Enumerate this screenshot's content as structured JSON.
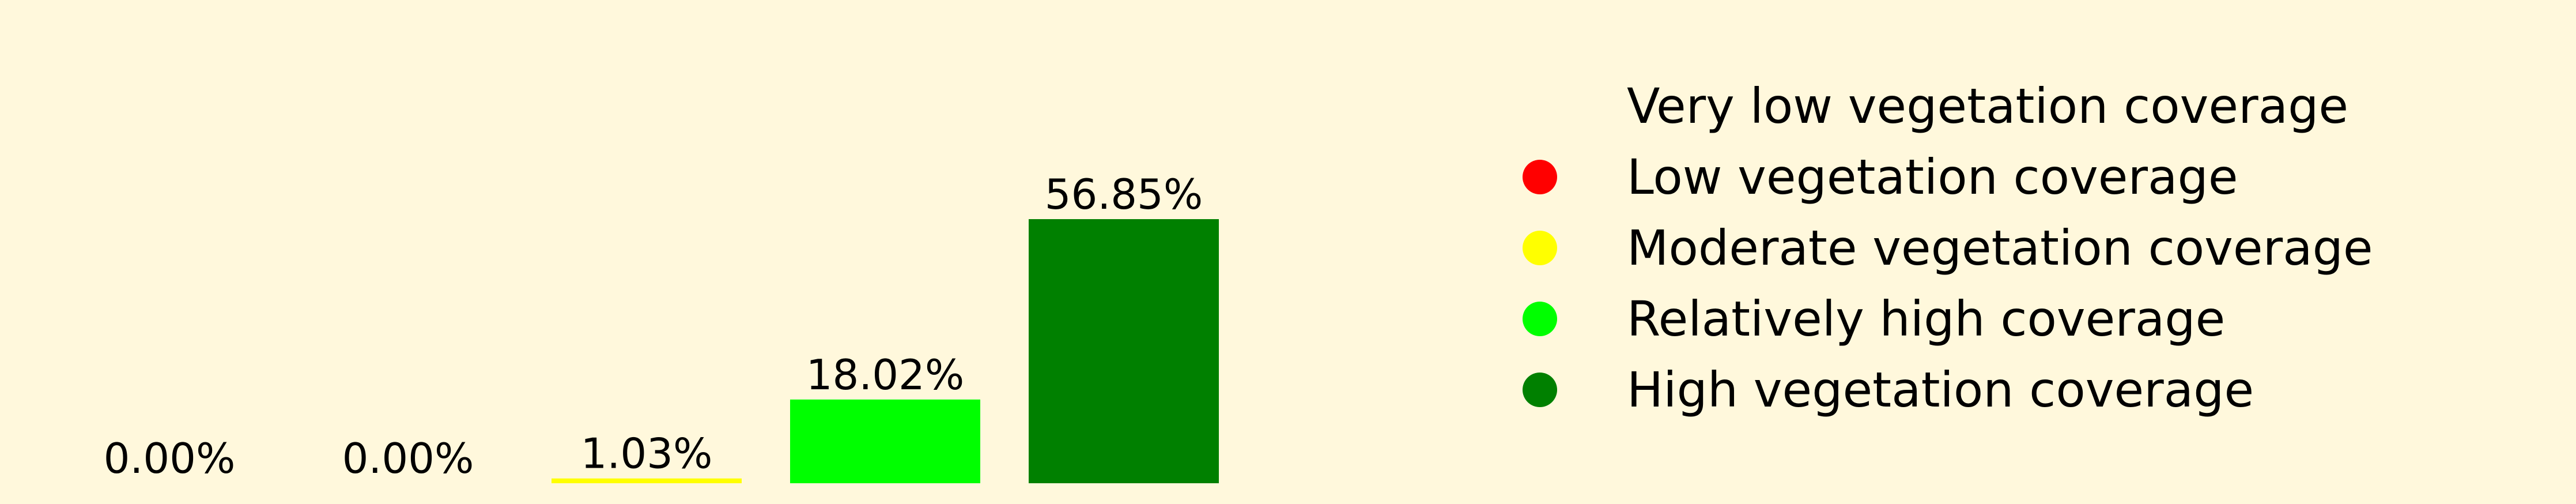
{
  "chart_data": {
    "type": "bar",
    "categories": [
      "Very low vegetation coverage",
      "Low vegetation coverage",
      "Moderate vegetation coverage",
      "Relatively high coverage",
      "High vegetation coverage"
    ],
    "values": [
      0.0,
      0.0,
      1.03,
      18.02,
      56.85
    ],
    "value_labels": [
      "0.00%",
      "0.00%",
      "1.03%",
      "18.02%",
      "56.85%"
    ],
    "colors": [
      "#FFF8DC",
      "#FF0000",
      "#FFFF00",
      "#00FF00",
      "#008000"
    ],
    "ylim": [
      0,
      60
    ],
    "grid": false,
    "legend_position": "right",
    "legend": [
      {
        "label": "Very low vegetation coverage",
        "color": "#FFF8DC"
      },
      {
        "label": "Low vegetation coverage",
        "color": "#FF0000"
      },
      {
        "label": "Moderate vegetation coverage",
        "color": "#FFFF00"
      },
      {
        "label": "Relatively high coverage",
        "color": "#00FF00"
      },
      {
        "label": "High vegetation coverage",
        "color": "#008000"
      }
    ]
  }
}
